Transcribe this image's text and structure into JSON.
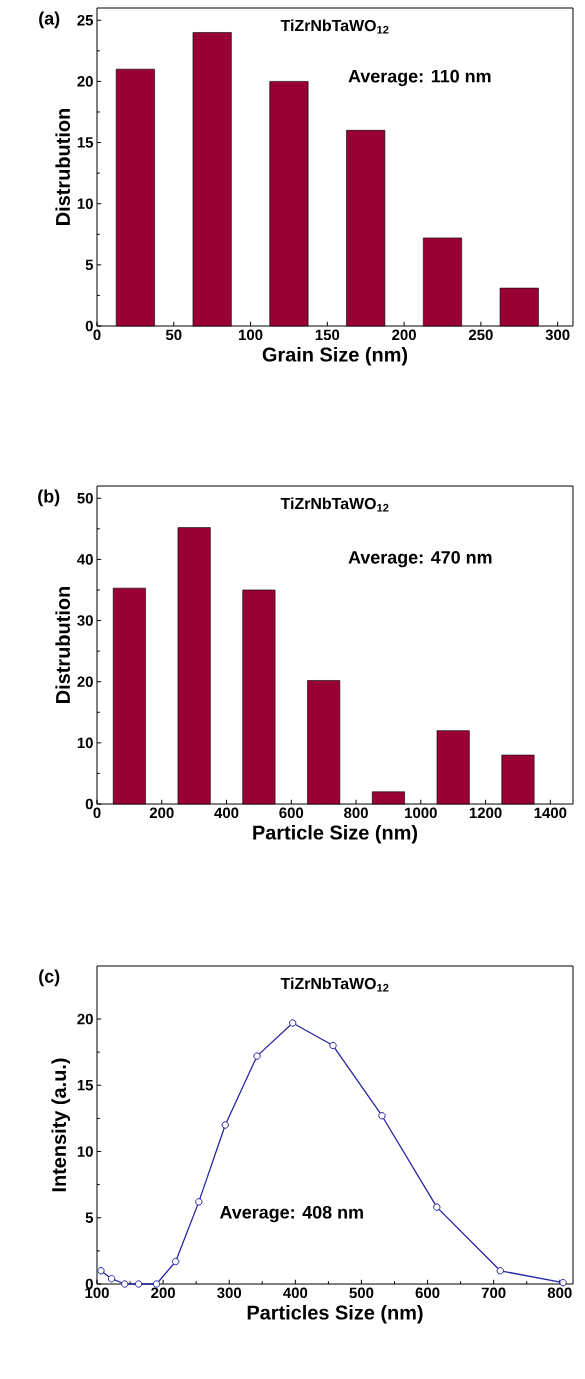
{
  "chart_data": [
    {
      "type": "bar",
      "title": "TiZrNbTaWO$_{12}$",
      "xlabel": "Grain Size (nm)",
      "ylabel": "Distrubution",
      "annotations": [
        "(a)",
        "Average: 110 nm"
      ],
      "x": [
        25,
        75,
        125,
        175,
        225,
        275
      ],
      "series": [
        {
          "color": "#990033",
          "values": [
            21,
            24,
            20,
            16,
            7.2,
            3.1
          ]
        }
      ],
      "xlim": [
        0,
        310
      ],
      "xticks": [
        0,
        50,
        100,
        150,
        200,
        250,
        300
      ],
      "ylim": [
        0,
        26
      ],
      "yticks": [
        0,
        5,
        10,
        15,
        20,
        25
      ],
      "grid": false
    },
    {
      "type": "bar",
      "title": "TiZrNbTaWO$_{12}$",
      "xlabel": "Particle Size (nm)",
      "ylabel": "Distrubution",
      "annotations": [
        "(b)",
        "Average: 470 nm"
      ],
      "x": [
        100,
        300,
        500,
        700,
        900,
        1100,
        1300
      ],
      "series": [
        {
          "color": "#990033",
          "values": [
            35.3,
            45.2,
            35,
            20.2,
            2,
            12,
            8
          ]
        }
      ],
      "xlim": [
        0,
        1470
      ],
      "xticks": [
        0,
        200,
        400,
        600,
        800,
        1000,
        1200,
        1400
      ],
      "ylim": [
        0,
        52
      ],
      "yticks": [
        0,
        10,
        20,
        30,
        40,
        50
      ],
      "grid": false
    },
    {
      "type": "line",
      "title": "TiZrNbTaWO$_{12}$",
      "xlabel": "Particles Size (nm)",
      "ylabel": "Intensity (a.u.)",
      "annotations": [
        "(c)",
        "Average: 408 nm"
      ],
      "x": [
        106,
        122,
        142,
        163,
        190,
        219,
        254,
        294,
        342,
        396,
        457,
        531,
        614,
        710,
        805
      ],
      "series": [
        {
          "color": "#2626a6",
          "values": [
            1.0,
            0.4,
            0.0,
            0.0,
            0.0,
            1.7,
            6.2,
            12.0,
            17.2,
            19.7,
            18.0,
            12.7,
            5.8,
            1.0,
            0.1
          ]
        }
      ],
      "marker": "circle",
      "line_style": "solid",
      "xlim": [
        100,
        820
      ],
      "xticks": [
        100,
        200,
        300,
        400,
        500,
        600,
        700,
        800
      ],
      "ylim": [
        0,
        24
      ],
      "yticks": [
        0,
        5,
        10,
        15,
        20
      ],
      "grid": false
    }
  ]
}
